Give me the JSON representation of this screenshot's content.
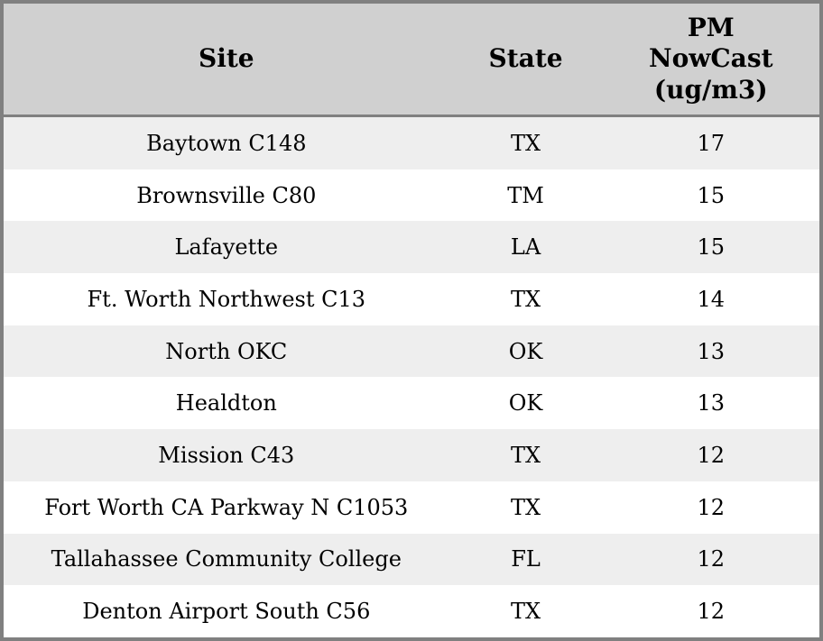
{
  "colors": {
    "border": "#808080",
    "header_bg": "#d0d0d0",
    "row_alt_bg": "#eeeeee",
    "row_bg": "#ffffff",
    "text": "#000000"
  },
  "table": {
    "columns": [
      {
        "label": "Site"
      },
      {
        "label": "State"
      },
      {
        "label": "PM\nNowCast\n(ug/m3)"
      }
    ],
    "rows": [
      {
        "site": "Baytown C148",
        "state": "TX",
        "pm": "17"
      },
      {
        "site": "Brownsville C80",
        "state": "TM",
        "pm": "15"
      },
      {
        "site": "Lafayette",
        "state": "LA",
        "pm": "15"
      },
      {
        "site": "Ft. Worth Northwest C13",
        "state": "TX",
        "pm": "14"
      },
      {
        "site": "North OKC",
        "state": "OK",
        "pm": "13"
      },
      {
        "site": "Healdton",
        "state": "OK",
        "pm": "13"
      },
      {
        "site": "Mission C43",
        "state": "TX",
        "pm": "12"
      },
      {
        "site": "Fort Worth CA Parkway N C1053",
        "state": "TX",
        "pm": "12"
      },
      {
        "site": "Tallahassee Community College",
        "state": "FL",
        "pm": "12"
      },
      {
        "site": "Denton Airport South C56",
        "state": "TX",
        "pm": "12"
      }
    ]
  },
  "chart_data": {
    "type": "table",
    "columns": [
      "Site",
      "State",
      "PM NowCast (ug/m3)"
    ],
    "rows": [
      [
        "Baytown C148",
        "TX",
        17
      ],
      [
        "Brownsville C80",
        "TM",
        15
      ],
      [
        "Lafayette",
        "LA",
        15
      ],
      [
        "Ft. Worth Northwest C13",
        "TX",
        14
      ],
      [
        "North OKC",
        "OK",
        13
      ],
      [
        "Healdton",
        "OK",
        13
      ],
      [
        "Mission C43",
        "TX",
        12
      ],
      [
        "Fort Worth CA Parkway N C1053",
        "TX",
        12
      ],
      [
        "Tallahassee Community College",
        "FL",
        12
      ],
      [
        "Denton Airport South C56",
        "TX",
        12
      ]
    ]
  }
}
